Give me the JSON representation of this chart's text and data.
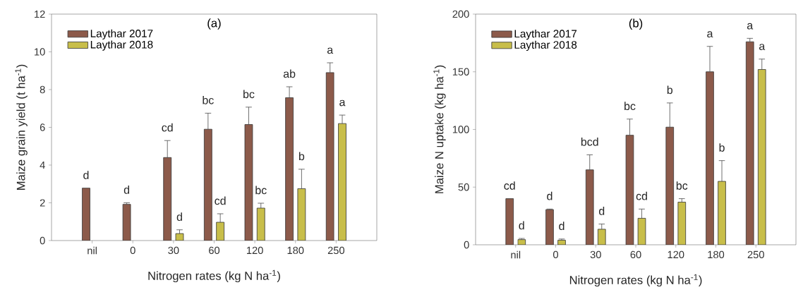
{
  "chart_data": [
    {
      "type": "bar",
      "title": "(a)",
      "xlabel": "Nitrogen rates (kg N ha$^{-1}$)",
      "ylabel": "Maize grain yield (t ha$^{-1}$)",
      "categories": [
        "nil",
        "0",
        "30",
        "60",
        "120",
        "180",
        "250"
      ],
      "ylim": [
        0,
        12
      ],
      "yticks": [
        0,
        2,
        4,
        6,
        8,
        10,
        12
      ],
      "legend": "top left",
      "series": [
        {
          "name": "Laythar 2017",
          "color": "#8c5a4a",
          "values": [
            2.78,
            1.92,
            4.4,
            5.9,
            6.15,
            7.57,
            8.9
          ],
          "errors": [
            null,
            [
              1.92,
              2.0
            ],
            [
              4.4,
              5.3
            ],
            [
              5.9,
              6.75
            ],
            [
              6.15,
              7.07
            ],
            [
              7.57,
              8.15
            ],
            [
              8.9,
              9.42
            ]
          ],
          "value_labels": [
            "d",
            "d",
            "cd",
            "bc",
            "bc",
            "ab",
            "a"
          ]
        },
        {
          "name": "Laythar 2018",
          "color": "#c8be4a",
          "values": [
            null,
            null,
            0.37,
            0.97,
            1.72,
            2.75,
            6.2
          ],
          "errors": [
            null,
            null,
            [
              0.37,
              0.57
            ],
            [
              0.97,
              1.42
            ],
            [
              1.72,
              1.98
            ],
            [
              2.75,
              3.78
            ],
            [
              6.2,
              6.65
            ]
          ],
          "value_labels": [
            null,
            null,
            "d",
            "cd",
            "bc",
            "b",
            "a"
          ]
        }
      ]
    },
    {
      "type": "bar",
      "title": "(b)",
      "xlabel": "Nitrogen rates (kg N ha$^{-1}$)",
      "ylabel": "Maize N uptake (kg ha$^{-1}$)",
      "categories": [
        "nil",
        "0",
        "30",
        "60",
        "120",
        "180",
        "250"
      ],
      "ylim": [
        0,
        200
      ],
      "yticks": [
        0,
        50,
        100,
        150,
        200
      ],
      "legend": "top left",
      "series": [
        {
          "name": "Laythar 2017",
          "color": "#8c5a4a",
          "values": [
            40,
            30.5,
            65,
            95,
            102,
            150,
            176
          ],
          "errors": [
            null,
            [
              30.5,
              31
            ],
            [
              65,
              78
            ],
            [
              95,
              109
            ],
            [
              102,
              123
            ],
            [
              150,
              172
            ],
            [
              176,
              179
            ]
          ],
          "value_labels": [
            "cd",
            "d",
            "bcd",
            "bc",
            "b",
            "a",
            "a"
          ]
        },
        {
          "name": "Laythar 2018",
          "color": "#c8be4a",
          "values": [
            4.5,
            4,
            13.5,
            23,
            37,
            55,
            152
          ],
          "errors": [
            [
              4.5,
              5.5
            ],
            [
              4,
              5
            ],
            [
              13.5,
              18
            ],
            [
              23,
              31
            ],
            [
              37,
              40
            ],
            [
              55,
              73
            ],
            [
              152,
              161
            ]
          ],
          "value_labels": [
            "d",
            "d",
            "d",
            "cd",
            "bc",
            "b",
            "a"
          ]
        }
      ]
    }
  ]
}
